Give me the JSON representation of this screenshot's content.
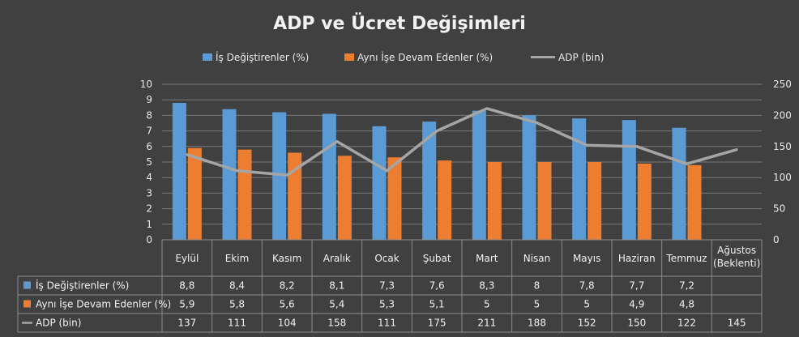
{
  "chart_data": {
    "type": "bar",
    "title": "ADP ve Ücret Değişimleri",
    "categories": [
      "Eylül",
      "Ekim",
      "Kasım",
      "Aralık",
      "Ocak",
      "Şubat",
      "Mart",
      "Nisan",
      "Mayıs",
      "Haziran",
      "Temmuz",
      "Ağustos (Beklenti)"
    ],
    "category_lines": [
      [
        "Eylül"
      ],
      [
        "Ekim"
      ],
      [
        "Kasım"
      ],
      [
        "Aralık"
      ],
      [
        "Ocak"
      ],
      [
        "Şubat"
      ],
      [
        "Mart"
      ],
      [
        "Nisan"
      ],
      [
        "Mayıs"
      ],
      [
        "Haziran"
      ],
      [
        "Temmuz"
      ],
      [
        "Ağustos",
        "(Beklenti)"
      ]
    ],
    "series": [
      {
        "name": "İş Değiştirenler (%)",
        "type": "bar",
        "axis": "left",
        "color": "#5b9bd5",
        "values": [
          8.8,
          8.4,
          8.2,
          8.1,
          7.3,
          7.6,
          8.3,
          8,
          7.8,
          7.7,
          7.2,
          null
        ],
        "labels": [
          "8,8",
          "8,4",
          "8,2",
          "8,1",
          "7,3",
          "7,6",
          "8,3",
          "8",
          "7,8",
          "7,7",
          "7,2",
          ""
        ]
      },
      {
        "name": "Aynı İşe Devam Edenler (%)",
        "type": "bar",
        "axis": "left",
        "color": "#ed7d31",
        "values": [
          5.9,
          5.8,
          5.6,
          5.4,
          5.3,
          5.1,
          5,
          5,
          5,
          4.9,
          4.8,
          null
        ],
        "labels": [
          "5,9",
          "5,8",
          "5,6",
          "5,4",
          "5,3",
          "5,1",
          "5",
          "5",
          "5",
          "4,9",
          "4,8",
          ""
        ]
      },
      {
        "name": "ADP (bin)",
        "type": "line",
        "axis": "right",
        "color": "#a5a5a5",
        "values": [
          137,
          111,
          104,
          158,
          111,
          175,
          211,
          188,
          152,
          150,
          122,
          145
        ],
        "labels": [
          "137",
          "111",
          "104",
          "158",
          "111",
          "175",
          "211",
          "188",
          "152",
          "150",
          "122",
          "145"
        ]
      }
    ],
    "left_axis": {
      "min": 0,
      "max": 10,
      "ticks": [
        "0",
        "1",
        "2",
        "3",
        "4",
        "5",
        "6",
        "7",
        "8",
        "9",
        "10"
      ]
    },
    "right_axis": {
      "min": 0,
      "max": 250,
      "ticks": [
        "0",
        "50",
        "100",
        "150",
        "200",
        "250"
      ]
    },
    "grid": true,
    "legend_position": "top",
    "data_table": true
  }
}
